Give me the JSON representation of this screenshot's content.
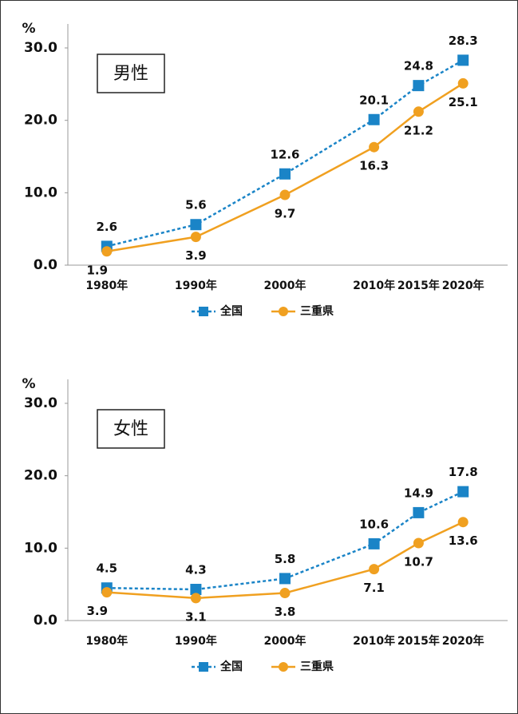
{
  "chart_data": [
    {
      "type": "line",
      "title": "男性",
      "y_label": "%",
      "x": [
        1980,
        1990,
        2000,
        2010,
        2015,
        2020
      ],
      "xlim": [
        1975,
        2025
      ],
      "xticks": [
        {
          "value": 1980,
          "label": "1980年"
        },
        {
          "value": 1990,
          "label": "1990年"
        },
        {
          "value": 2000,
          "label": "2000年"
        },
        {
          "value": 2010,
          "label": "2010年"
        },
        {
          "value": 2015,
          "label": "2015年"
        },
        {
          "value": 2020,
          "label": "2020年"
        }
      ],
      "ylim": [
        0,
        30
      ],
      "yticks": [
        {
          "value": 0,
          "label": "0.0"
        },
        {
          "value": 10,
          "label": "10.0"
        },
        {
          "value": 20,
          "label": "20.0"
        },
        {
          "value": 30,
          "label": "30.0"
        }
      ],
      "series": [
        {
          "name": "全国",
          "color": "#1a84c7",
          "values": [
            2.6,
            5.6,
            12.6,
            20.1,
            24.8,
            28.3
          ]
        },
        {
          "name": "三重県",
          "color": "#f0a020",
          "values": [
            1.9,
            3.9,
            9.7,
            16.3,
            21.2,
            25.1
          ]
        }
      ]
    },
    {
      "type": "line",
      "title": "女性",
      "y_label": "%",
      "x": [
        1980,
        1990,
        2000,
        2010,
        2015,
        2020
      ],
      "xlim": [
        1975,
        2025
      ],
      "xticks": [
        {
          "value": 1980,
          "label": "1980年"
        },
        {
          "value": 1990,
          "label": "1990年"
        },
        {
          "value": 2000,
          "label": "2000年"
        },
        {
          "value": 2010,
          "label": "2010年"
        },
        {
          "value": 2015,
          "label": "2015年"
        },
        {
          "value": 2020,
          "label": "2020年"
        }
      ],
      "ylim": [
        0,
        30
      ],
      "yticks": [
        {
          "value": 0,
          "label": "0.0"
        },
        {
          "value": 10,
          "label": "10.0"
        },
        {
          "value": 20,
          "label": "20.0"
        },
        {
          "value": 30,
          "label": "30.0"
        }
      ],
      "series": [
        {
          "name": "全国",
          "color": "#1a84c7",
          "values": [
            4.5,
            4.3,
            5.8,
            10.6,
            14.9,
            17.8
          ]
        },
        {
          "name": "三重県",
          "color": "#f0a020",
          "values": [
            3.9,
            3.1,
            3.8,
            7.1,
            10.7,
            13.6
          ]
        }
      ]
    }
  ]
}
